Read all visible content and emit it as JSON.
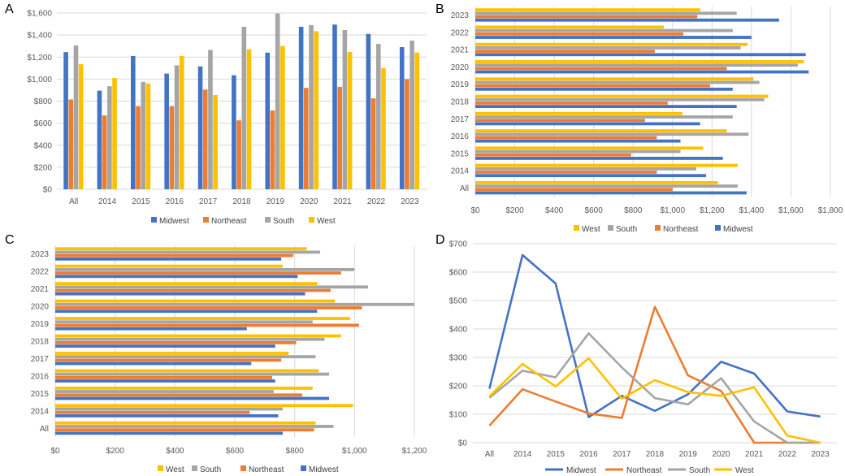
{
  "colors": {
    "Midwest": "#4472C4",
    "Northeast": "#ED7D31",
    "South": "#A5A5A5",
    "West": "#FFC000",
    "grid": "#D9D9D9",
    "text": "#595959"
  },
  "chart_data": [
    {
      "id": "A",
      "panel_label": "A",
      "type": "bar",
      "orientation": "vertical",
      "categories": [
        "All",
        "2014",
        "2015",
        "2016",
        "2017",
        "2018",
        "2019",
        "2020",
        "2021",
        "2022",
        "2023"
      ],
      "series": [
        {
          "name": "Midwest",
          "values": [
            1245,
            895,
            1210,
            1050,
            1115,
            1035,
            1240,
            1475,
            1495,
            1410,
            1290
          ]
        },
        {
          "name": "Northeast",
          "values": [
            815,
            670,
            755,
            755,
            905,
            625,
            715,
            920,
            930,
            825,
            1000
          ]
        },
        {
          "name": "South",
          "values": [
            1305,
            935,
            975,
            1125,
            1265,
            1475,
            1595,
            1490,
            1445,
            1320,
            1350
          ]
        },
        {
          "name": "West",
          "values": [
            1135,
            1010,
            960,
            1210,
            855,
            1270,
            1300,
            1435,
            1245,
            1100,
            1240
          ]
        }
      ],
      "ylim": [
        0,
        1600
      ],
      "ticks": [
        0,
        200,
        400,
        600,
        800,
        1000,
        1200,
        1400,
        1600
      ],
      "tick_labels": [
        "$0",
        "$200",
        "$400",
        "$600",
        "$800",
        "$1,000",
        "$1,200",
        "$1,400",
        "$1,600"
      ],
      "legend_order": [
        "Midwest",
        "Northeast",
        "South",
        "West"
      ],
      "legend_position": "bottom",
      "grid": true
    },
    {
      "id": "B",
      "panel_label": "B",
      "type": "bar",
      "orientation": "horizontal",
      "categories": [
        "All",
        "2014",
        "2015",
        "2016",
        "2017",
        "2018",
        "2019",
        "2020",
        "2021",
        "2022",
        "2023"
      ],
      "series": [
        {
          "name": "Midwest",
          "values": [
            1375,
            1170,
            1255,
            1040,
            1140,
            1325,
            1305,
            1690,
            1675,
            1400,
            1540
          ]
        },
        {
          "name": "Northeast",
          "values": [
            1000,
            920,
            790,
            920,
            860,
            975,
            1190,
            1275,
            910,
            1055,
            1125
          ]
        },
        {
          "name": "South",
          "values": [
            1330,
            1120,
            1040,
            1385,
            1305,
            1465,
            1440,
            1635,
            1345,
            1305,
            1325
          ]
        },
        {
          "name": "West",
          "values": [
            1230,
            1330,
            1155,
            1275,
            1050,
            1485,
            1410,
            1665,
            1380,
            955,
            1140
          ]
        }
      ],
      "xlim": [
        0,
        1800
      ],
      "ticks": [
        0,
        200,
        400,
        600,
        800,
        1000,
        1200,
        1400,
        1600,
        1800
      ],
      "tick_labels": [
        "$0",
        "$200",
        "$400",
        "$600",
        "$800",
        "$1,000",
        "$1,200",
        "$1,400",
        "$1,600",
        "$1,800"
      ],
      "legend_order": [
        "West",
        "South",
        "Northeast",
        "Midwest"
      ],
      "legend_position": "bottom",
      "grid": true
    },
    {
      "id": "C",
      "panel_label": "C",
      "type": "bar",
      "orientation": "horizontal",
      "categories": [
        "All",
        "2014",
        "2015",
        "2016",
        "2017",
        "2018",
        "2019",
        "2020",
        "2021",
        "2022",
        "2023"
      ],
      "series": [
        {
          "name": "Midwest",
          "values": [
            760,
            745,
            915,
            735,
            655,
            735,
            640,
            875,
            835,
            810,
            755
          ]
        },
        {
          "name": "Northeast",
          "values": [
            865,
            650,
            825,
            725,
            755,
            805,
            1015,
            1025,
            920,
            955,
            795
          ]
        },
        {
          "name": "South",
          "values": [
            930,
            760,
            730,
            915,
            870,
            900,
            860,
            1200,
            1045,
            1000,
            885
          ]
        },
        {
          "name": "West",
          "values": [
            870,
            995,
            860,
            880,
            780,
            955,
            985,
            935,
            875,
            760,
            840
          ]
        }
      ],
      "xlim": [
        0,
        1200
      ],
      "ticks": [
        0,
        200,
        400,
        600,
        800,
        1000,
        1200
      ],
      "tick_labels": [
        "$0",
        "$200",
        "$400",
        "$600",
        "$800",
        "$1,000",
        "$1,200"
      ],
      "legend_order": [
        "West",
        "South",
        "Northeast",
        "Midwest"
      ],
      "legend_position": "bottom",
      "grid": true
    },
    {
      "id": "D",
      "panel_label": "D",
      "type": "line",
      "categories": [
        "All",
        "2014",
        "2015",
        "2016",
        "2017",
        "2018",
        "2019",
        "2020",
        "2021",
        "2022",
        "2023"
      ],
      "series": [
        {
          "name": "Midwest",
          "values": [
            190,
            660,
            560,
            90,
            165,
            112,
            170,
            285,
            243,
            110,
            92
          ]
        },
        {
          "name": "Northeast",
          "values": [
            60,
            188,
            145,
            103,
            87,
            478,
            237,
            182,
            0,
            0,
            0
          ]
        },
        {
          "name": "South",
          "values": [
            158,
            253,
            230,
            385,
            265,
            157,
            135,
            227,
            75,
            0,
            0
          ]
        },
        {
          "name": "West",
          "values": [
            163,
            277,
            198,
            297,
            155,
            220,
            178,
            165,
            195,
            25,
            0
          ]
        }
      ],
      "ylim": [
        0,
        700
      ],
      "ticks": [
        0,
        100,
        200,
        300,
        400,
        500,
        600,
        700
      ],
      "tick_labels": [
        "$0",
        "$100",
        "$200",
        "$300",
        "$400",
        "$500",
        "$600",
        "$700"
      ],
      "legend_order": [
        "Midwest",
        "Northeast",
        "South",
        "West"
      ],
      "legend_position": "bottom",
      "grid": true
    }
  ]
}
